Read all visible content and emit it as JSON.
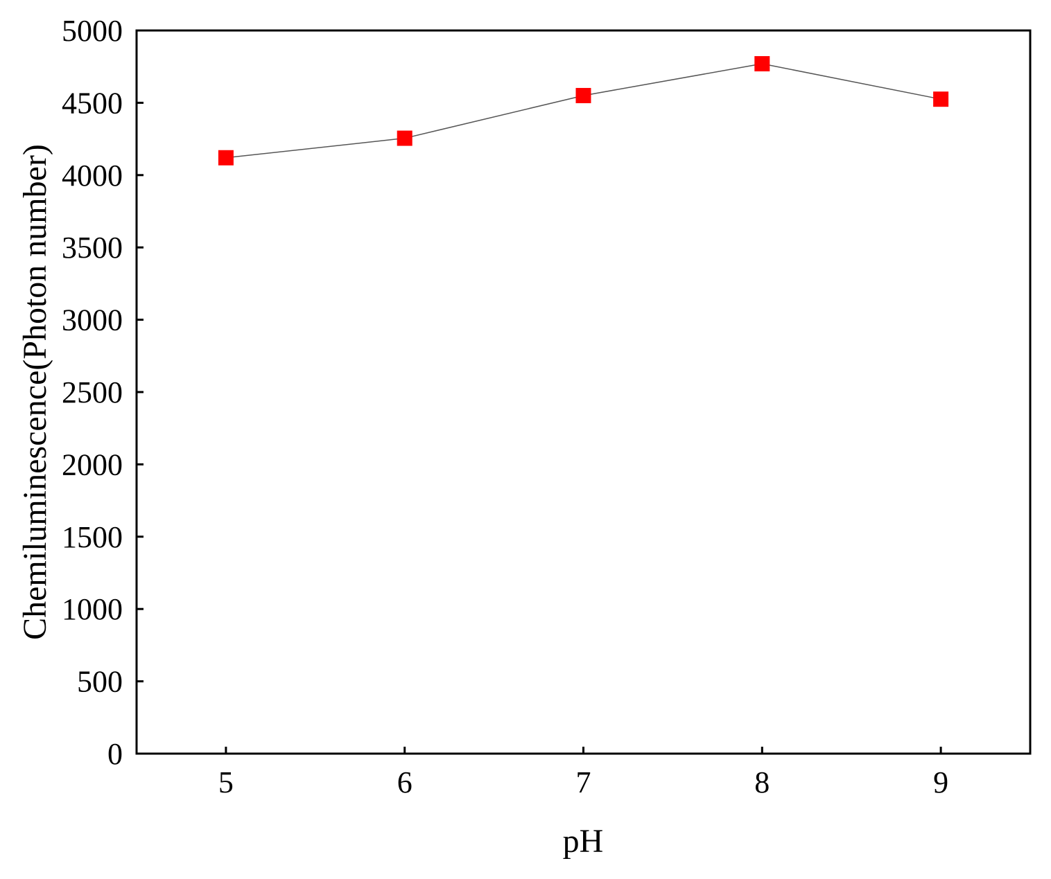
{
  "chart_data": {
    "type": "line",
    "title": "",
    "xlabel": "pH",
    "ylabel": "Chemiluminescence(Photon number)",
    "x": [
      5,
      6,
      7,
      8,
      9
    ],
    "xticks": [
      "5",
      "6",
      "7",
      "8",
      "9"
    ],
    "xlim": [
      4.5,
      9.5
    ],
    "ylim": [
      0,
      5000
    ],
    "yticks": [
      "0",
      "500",
      "1000",
      "1500",
      "2000",
      "2500",
      "3000",
      "3500",
      "4000",
      "4500",
      "5000"
    ],
    "grid": false,
    "legend": "none",
    "series": [
      {
        "values": [
          4120,
          4255,
          4550,
          4770,
          4525
        ],
        "marker": "square",
        "marker_color": "#ff0000",
        "line_color": "#555555"
      }
    ]
  }
}
